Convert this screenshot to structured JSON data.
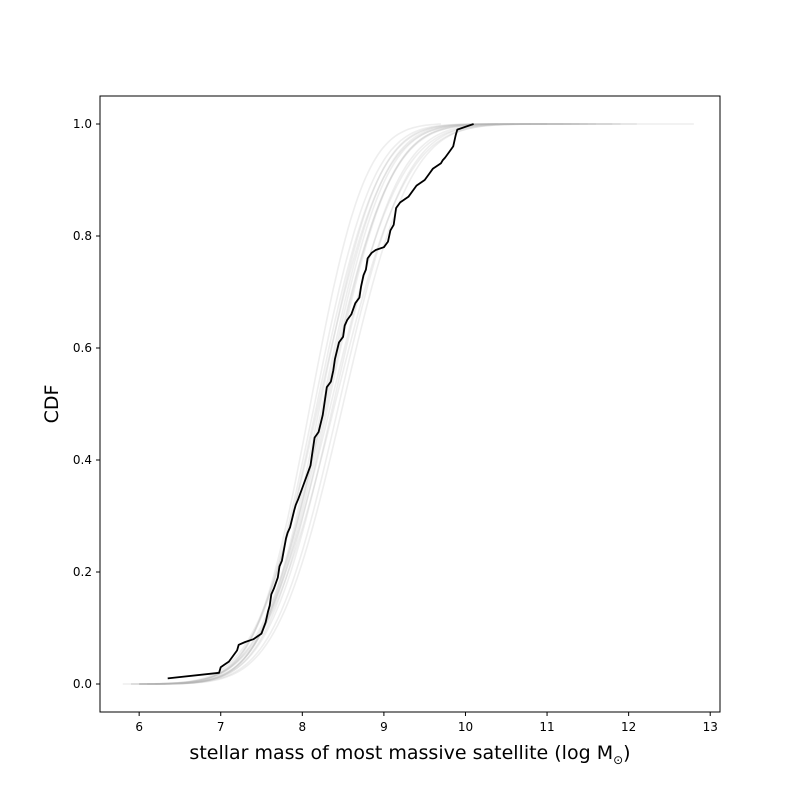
{
  "chart_data": {
    "type": "line",
    "title": "",
    "xlabel_main": "stellar mass of most massive satellite (log M",
    "xlabel_sub": "⊙",
    "xlabel_close": ")",
    "ylabel": "CDF",
    "xlim": [
      5.52,
      13.12
    ],
    "ylim": [
      -0.05,
      1.05
    ],
    "xticks": [
      6,
      7,
      8,
      9,
      10,
      11,
      12,
      13
    ],
    "yticks": [
      0.0,
      0.2,
      0.4,
      0.6,
      0.8,
      1.0
    ],
    "grid": false,
    "colors": {
      "observed": "#000000",
      "realizations": "#b0b0b0"
    },
    "realizations": [
      {
        "mu": 8.18,
        "sigma": 0.58,
        "xmin": 5.8,
        "xmax": 10.6
      },
      {
        "mu": 8.28,
        "sigma": 0.62,
        "xmin": 6.0,
        "xmax": 11.8
      },
      {
        "mu": 8.35,
        "sigma": 0.66,
        "xmin": 6.2,
        "xmax": 12.8
      },
      {
        "mu": 8.22,
        "sigma": 0.55,
        "xmin": 6.0,
        "xmax": 11.0
      },
      {
        "mu": 8.45,
        "sigma": 0.63,
        "xmin": 6.2,
        "xmax": 11.5
      },
      {
        "mu": 8.1,
        "sigma": 0.52,
        "xmin": 6.0,
        "xmax": 9.7
      },
      {
        "mu": 8.3,
        "sigma": 0.6,
        "xmin": 6.0,
        "xmax": 11.3
      },
      {
        "mu": 8.4,
        "sigma": 0.68,
        "xmin": 6.1,
        "xmax": 12.1
      },
      {
        "mu": 8.25,
        "sigma": 0.57,
        "xmin": 6.0,
        "xmax": 10.8
      },
      {
        "mu": 8.32,
        "sigma": 0.59,
        "xmin": 6.1,
        "xmax": 11.2
      },
      {
        "mu": 8.2,
        "sigma": 0.61,
        "xmin": 5.9,
        "xmax": 11.6
      },
      {
        "mu": 8.5,
        "sigma": 0.64,
        "xmin": 6.3,
        "xmax": 11.9
      },
      {
        "mu": 8.15,
        "sigma": 0.56,
        "xmin": 5.9,
        "xmax": 10.4
      },
      {
        "mu": 8.38,
        "sigma": 0.62,
        "xmin": 6.1,
        "xmax": 11.4
      },
      {
        "mu": 8.27,
        "sigma": 0.58,
        "xmin": 6.0,
        "xmax": 11.0
      }
    ],
    "observed": {
      "x": [
        6.35,
        6.98,
        7.0,
        7.05,
        7.1,
        7.15,
        7.2,
        7.22,
        7.3,
        7.4,
        7.5,
        7.55,
        7.58,
        7.6,
        7.62,
        7.65,
        7.7,
        7.72,
        7.75,
        7.8,
        7.82,
        7.85,
        7.9,
        7.92,
        7.95,
        8.0,
        8.05,
        8.1,
        8.12,
        8.15,
        8.2,
        8.25,
        8.3,
        8.35,
        8.38,
        8.4,
        8.45,
        8.5,
        8.52,
        8.55,
        8.6,
        8.65,
        8.7,
        8.72,
        8.75,
        8.78,
        8.8,
        8.85,
        8.9,
        9.0,
        9.05,
        9.08,
        9.12,
        9.15,
        9.2,
        9.3,
        9.4,
        9.5,
        9.55,
        9.6,
        9.65,
        9.7,
        9.72,
        9.75,
        9.8,
        9.85,
        9.88,
        9.9,
        10.1
      ],
      "y": [
        0.01,
        0.02,
        0.03,
        0.035,
        0.04,
        0.05,
        0.06,
        0.07,
        0.075,
        0.08,
        0.09,
        0.11,
        0.13,
        0.14,
        0.16,
        0.17,
        0.19,
        0.21,
        0.22,
        0.26,
        0.27,
        0.28,
        0.31,
        0.32,
        0.33,
        0.35,
        0.37,
        0.39,
        0.41,
        0.44,
        0.45,
        0.48,
        0.53,
        0.54,
        0.56,
        0.58,
        0.61,
        0.62,
        0.64,
        0.65,
        0.66,
        0.68,
        0.69,
        0.71,
        0.73,
        0.74,
        0.76,
        0.77,
        0.775,
        0.78,
        0.79,
        0.81,
        0.82,
        0.85,
        0.86,
        0.87,
        0.89,
        0.9,
        0.91,
        0.92,
        0.925,
        0.93,
        0.935,
        0.94,
        0.95,
        0.96,
        0.98,
        0.99,
        1.0
      ]
    }
  }
}
